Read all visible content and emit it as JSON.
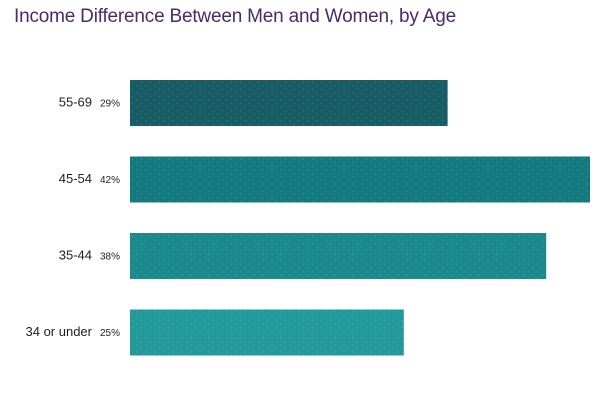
{
  "chart_data": {
    "type": "bar",
    "orientation": "horizontal",
    "title": "Income Difference Between Men and Women, by Age",
    "xlabel": "",
    "ylabel": "",
    "categories": [
      "55-69",
      "45-54",
      "35-44",
      "34 or under"
    ],
    "values": [
      29,
      42,
      38,
      25
    ],
    "value_labels": [
      "29%",
      "42%",
      "38%",
      "25%"
    ],
    "xlim": [
      0,
      42
    ],
    "grid": false,
    "legend": "none"
  },
  "colors": {
    "title": "#4a2a6e",
    "bars": [
      "#185c66",
      "#157a7f",
      "#1a8a8c",
      "#229a9c"
    ],
    "bar_texture": "dotted"
  }
}
